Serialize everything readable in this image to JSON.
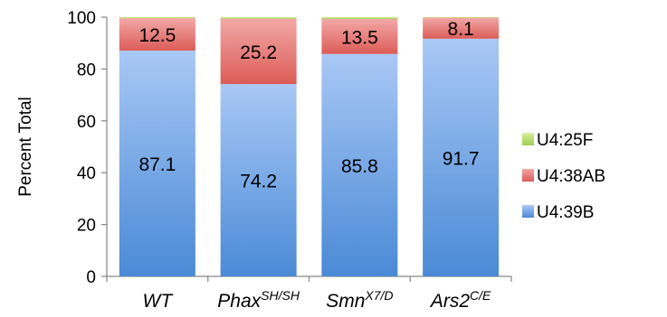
{
  "chart_data": {
    "type": "bar",
    "stacked": true,
    "ylabel": "Percent Total",
    "ylim": [
      0,
      100
    ],
    "yticks": [
      0,
      20,
      40,
      60,
      80,
      100
    ],
    "categories": [
      {
        "base": "WT",
        "sup": ""
      },
      {
        "base": "Phax",
        "sup": "SH/SH"
      },
      {
        "base": "Smn",
        "sup": "X7/D"
      },
      {
        "base": "Ars2",
        "sup": "C/E"
      }
    ],
    "series": [
      {
        "name": "U4:39B",
        "values": [
          87.1,
          74.2,
          85.8,
          91.7
        ],
        "color_top": "#a9c8f5",
        "color_bottom": "#4a8ad6",
        "labels": [
          "87.1",
          "74.2",
          "85.8",
          "91.7"
        ]
      },
      {
        "name": "U4:38AB",
        "values": [
          12.5,
          25.2,
          13.5,
          8.1
        ],
        "color_top": "#f2a8a6",
        "color_bottom": "#dc5c58",
        "labels": [
          "12.5",
          "25.2",
          "13.5",
          "8.1"
        ]
      },
      {
        "name": "U4:25F",
        "values": [
          0.4,
          0.6,
          0.7,
          0.2
        ],
        "color_top": "#d5eea0",
        "color_bottom": "#9fcf4f",
        "labels": []
      }
    ],
    "legend": {
      "position": "right",
      "order": [
        "U4:25F",
        "U4:38AB",
        "U4:39B"
      ]
    },
    "grid": false
  }
}
